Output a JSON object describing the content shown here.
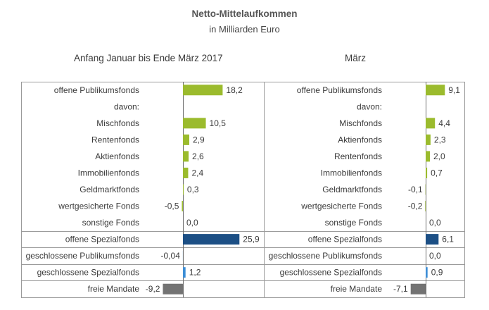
{
  "title": "Netto-Mittelaufkommen",
  "subtitle": "in Milliarden Euro",
  "colors": {
    "green": "#9bbb2d",
    "blue": "#1c4f85",
    "lightblue": "#3d8ed6",
    "gray": "#737373",
    "border": "#9a9a9a"
  },
  "chart_data": [
    {
      "type": "bar",
      "orientation": "horizontal",
      "heading": "Anfang Januar bis Ende März 2017",
      "categories": [
        "offene Publikumsfonds",
        "davon:",
        "Mischfonds",
        "Rentenfonds",
        "Aktienfonds",
        "Immobilienfonds",
        "Geldmarktfonds",
        "wertgesicherte Fonds",
        "sonstige Fonds",
        "offene Spezialfonds",
        "geschlossene Publikumsfonds",
        "geschlossene Spezialfonds",
        "freie Mandate"
      ],
      "values": [
        18.2,
        null,
        10.5,
        2.9,
        2.6,
        2.4,
        0.3,
        -0.5,
        0.0,
        25.9,
        -0.04,
        1.2,
        -9.2
      ],
      "labels": [
        "18,2",
        "",
        "10,5",
        "2,9",
        "2,6",
        "2,4",
        "0,3",
        "-0,5",
        "0,0",
        "25,9",
        "-0,04",
        "1,2",
        "-9,2"
      ],
      "colors": [
        "green",
        "",
        "green",
        "green",
        "green",
        "green",
        "green",
        "green",
        "green",
        "blue",
        "lightblue",
        "lightblue",
        "gray"
      ]
    },
    {
      "type": "bar",
      "orientation": "horizontal",
      "heading": "März",
      "categories": [
        "offene Publikumsfonds",
        "davon:",
        "Mischfonds",
        "Aktienfonds",
        "Rentenfonds",
        "Immobilienfonds",
        "Geldmarktfonds",
        "wertgesicherte Fonds",
        "sonstige Fonds",
        "offene Spezialfonds",
        "geschlossene Publikumsfonds",
        "geschlossene Spezialfonds",
        "freie Mandate"
      ],
      "values": [
        9.1,
        null,
        4.4,
        2.3,
        2.0,
        0.7,
        -0.1,
        -0.2,
        0.0,
        6.1,
        0.0,
        0.9,
        -7.1
      ],
      "labels": [
        "9,1",
        "",
        "4,4",
        "2,3",
        "2,0",
        "0,7",
        "-0,1",
        "-0,2",
        "0,0",
        "6,1",
        "0,0",
        "0,9",
        "-7,1"
      ],
      "colors": [
        "green",
        "",
        "green",
        "green",
        "green",
        "green",
        "green",
        "green",
        "green",
        "blue",
        "lightblue",
        "lightblue",
        "gray"
      ]
    }
  ]
}
